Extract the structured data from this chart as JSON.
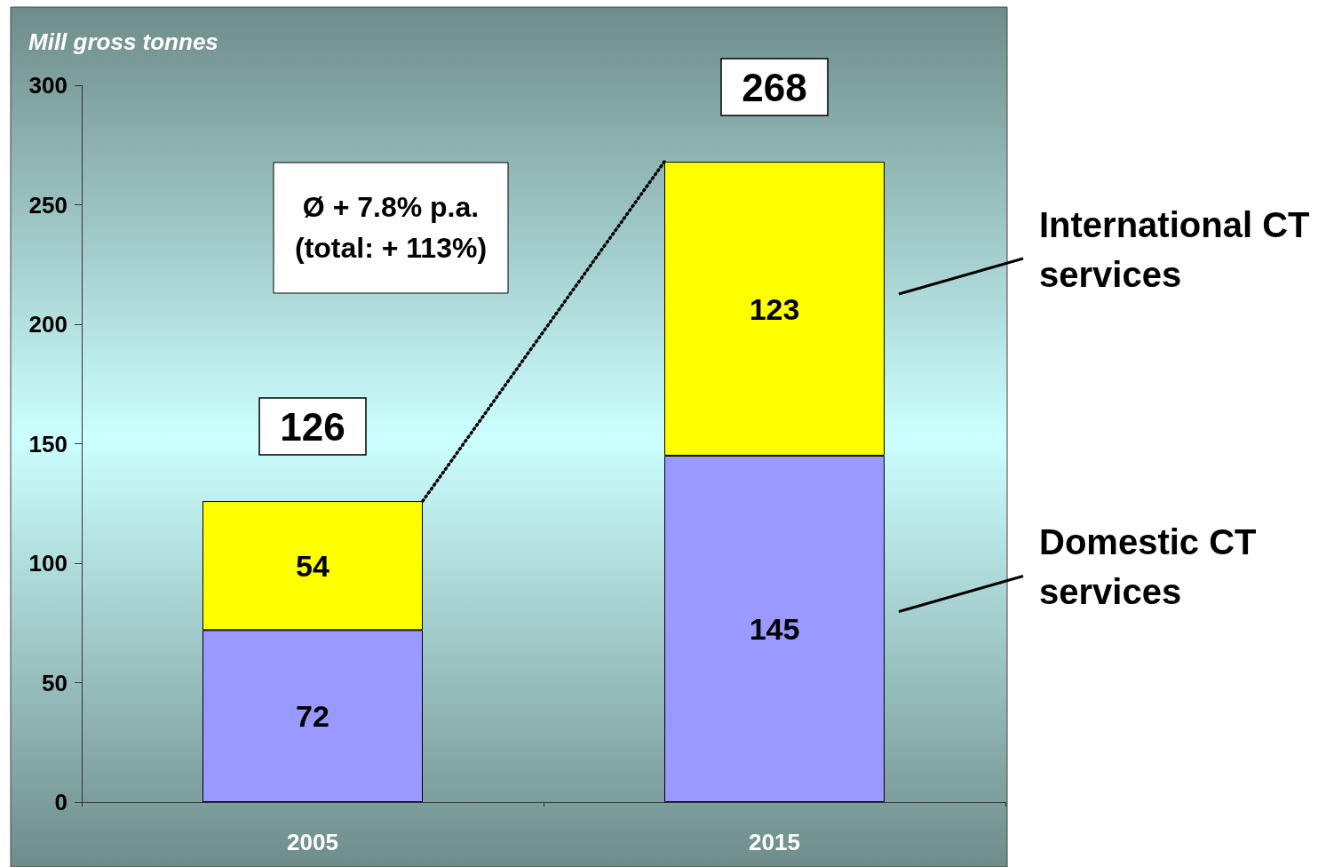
{
  "chart_data": {
    "type": "bar",
    "stacked": true,
    "ylabel": "Mill gross tonnes",
    "categories": [
      "2005",
      "2015"
    ],
    "series": [
      {
        "name": "Domestic CT services",
        "color": "#9999ff",
        "values": [
          72,
          145
        ]
      },
      {
        "name": "International CT services",
        "color": "#ffff00",
        "values": [
          54,
          123
        ]
      }
    ],
    "totals": [
      "126",
      "268"
    ],
    "data_labels": true,
    "annotations": [
      "Ø + 7.8% p.a.\n(total: + 113%)"
    ],
    "ylim": [
      0,
      300
    ],
    "yticks": [
      0,
      50,
      100,
      150,
      200,
      250,
      300
    ],
    "grid": false,
    "legend": "right"
  }
}
